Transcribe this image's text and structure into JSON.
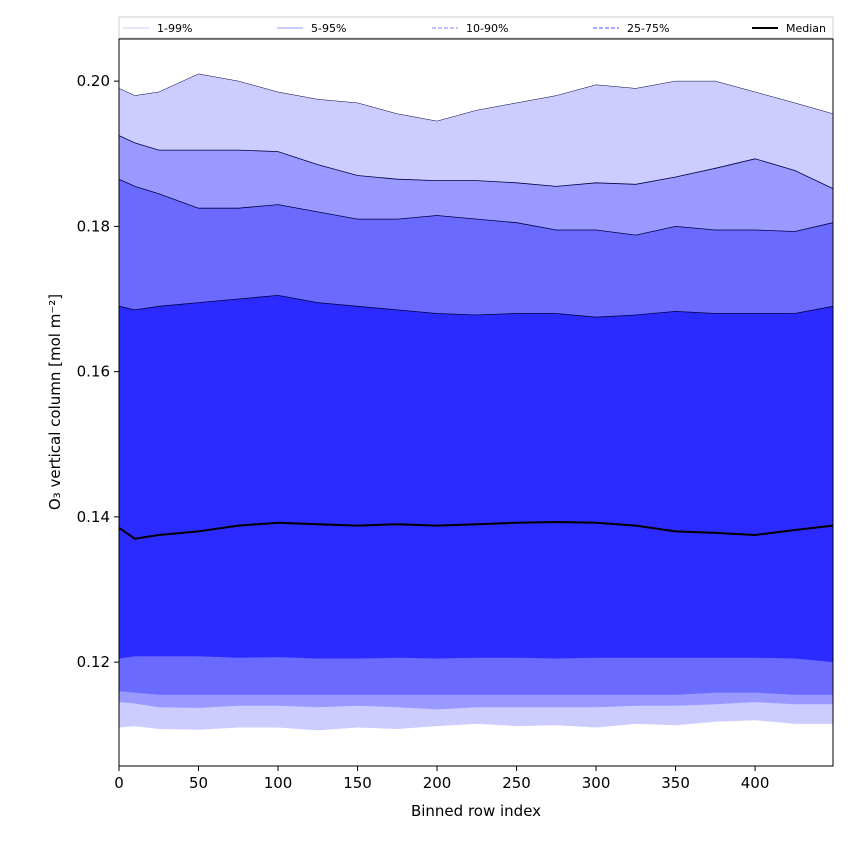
{
  "chart_data": {
    "type": "area",
    "xlabel": "Binned row index",
    "ylabel": "O₃ vertical column [mol m⁻²]",
    "xlim": [
      0,
      449
    ],
    "ylim": [
      0.1057,
      0.2058
    ],
    "xticks": [
      0,
      50,
      100,
      150,
      200,
      250,
      300,
      350,
      400
    ],
    "yticks": [
      0.12,
      0.14,
      0.16,
      0.18,
      0.2
    ],
    "ytick_labels": [
      "0.12",
      "0.14",
      "0.16",
      "0.18",
      "0.20"
    ],
    "grid": false,
    "legend_position": "top",
    "legend": [
      {
        "label": "1-99%",
        "color": "#ccccff",
        "style": "solid"
      },
      {
        "label": "5-95%",
        "color": "#9999ff",
        "style": "solid"
      },
      {
        "label": "10-90%",
        "color": "#8080ff",
        "style": "dashed"
      },
      {
        "label": "25-75%",
        "color": "#4d4dff",
        "style": "dashed"
      },
      {
        "label": "Median",
        "color": "#000000",
        "style": "solid"
      }
    ],
    "x": [
      0,
      10,
      25,
      50,
      75,
      100,
      125,
      150,
      175,
      200,
      225,
      250,
      275,
      300,
      325,
      350,
      375,
      400,
      425,
      449
    ],
    "bands": [
      {
        "name": "1-99%",
        "fill": "#ccccff",
        "upper": [
          0.199,
          0.198,
          0.1985,
          0.201,
          0.2,
          0.1985,
          0.1975,
          0.197,
          0.1955,
          0.1945,
          0.196,
          0.197,
          0.198,
          0.1995,
          0.199,
          0.2,
          0.2,
          0.1985,
          0.197,
          0.1955
        ],
        "lower": [
          0.111,
          0.1112,
          0.1108,
          0.1107,
          0.111,
          0.111,
          0.1106,
          0.111,
          0.1108,
          0.1112,
          0.1115,
          0.1112,
          0.1113,
          0.111,
          0.1115,
          0.1113,
          0.1118,
          0.112,
          0.1115,
          0.1115
        ]
      },
      {
        "name": "5-95%",
        "fill": "#9999ff",
        "upper": [
          0.1925,
          0.1915,
          0.1905,
          0.1905,
          0.1905,
          0.1903,
          0.1885,
          0.187,
          0.1865,
          0.1863,
          0.1863,
          0.186,
          0.1855,
          0.186,
          0.1858,
          0.1868,
          0.188,
          0.1893,
          0.1877,
          0.1852
        ],
        "lower": [
          0.1145,
          0.1143,
          0.1138,
          0.1137,
          0.114,
          0.114,
          0.1138,
          0.114,
          0.1138,
          0.1135,
          0.1138,
          0.1138,
          0.1138,
          0.1138,
          0.114,
          0.114,
          0.1142,
          0.1145,
          0.1142,
          0.1142
        ]
      },
      {
        "name": "10-90%",
        "fill": "#6a6aff",
        "upper": [
          0.1865,
          0.1855,
          0.1845,
          0.1825,
          0.1825,
          0.183,
          0.182,
          0.181,
          0.181,
          0.1815,
          0.181,
          0.1805,
          0.1795,
          0.1795,
          0.1788,
          0.18,
          0.1795,
          0.1795,
          0.1793,
          0.1805
        ],
        "lower": [
          0.116,
          0.1158,
          0.1155,
          0.1155,
          0.1155,
          0.1155,
          0.1155,
          0.1155,
          0.1155,
          0.1155,
          0.1155,
          0.1155,
          0.1155,
          0.1155,
          0.1155,
          0.1155,
          0.1158,
          0.1158,
          0.1155,
          0.1155
        ]
      },
      {
        "name": "25-75%",
        "fill": "#2b2bff",
        "upper": [
          0.169,
          0.1685,
          0.169,
          0.1695,
          0.17,
          0.1705,
          0.1695,
          0.169,
          0.1685,
          0.168,
          0.1678,
          0.168,
          0.168,
          0.1675,
          0.1678,
          0.1683,
          0.168,
          0.168,
          0.168,
          0.169
        ],
        "lower": [
          0.1205,
          0.1208,
          0.1208,
          0.1208,
          0.1206,
          0.1207,
          0.1205,
          0.1205,
          0.1206,
          0.1205,
          0.1206,
          0.1206,
          0.1205,
          0.1206,
          0.1206,
          0.1206,
          0.1206,
          0.1206,
          0.1205,
          0.12
        ]
      }
    ],
    "median": {
      "name": "Median",
      "color": "#000000",
      "values": [
        0.1385,
        0.137,
        0.1375,
        0.138,
        0.1388,
        0.1392,
        0.139,
        0.1388,
        0.139,
        0.1388,
        0.139,
        0.1392,
        0.1393,
        0.1392,
        0.1388,
        0.138,
        0.1378,
        0.1375,
        0.1382,
        0.1388
      ]
    }
  }
}
